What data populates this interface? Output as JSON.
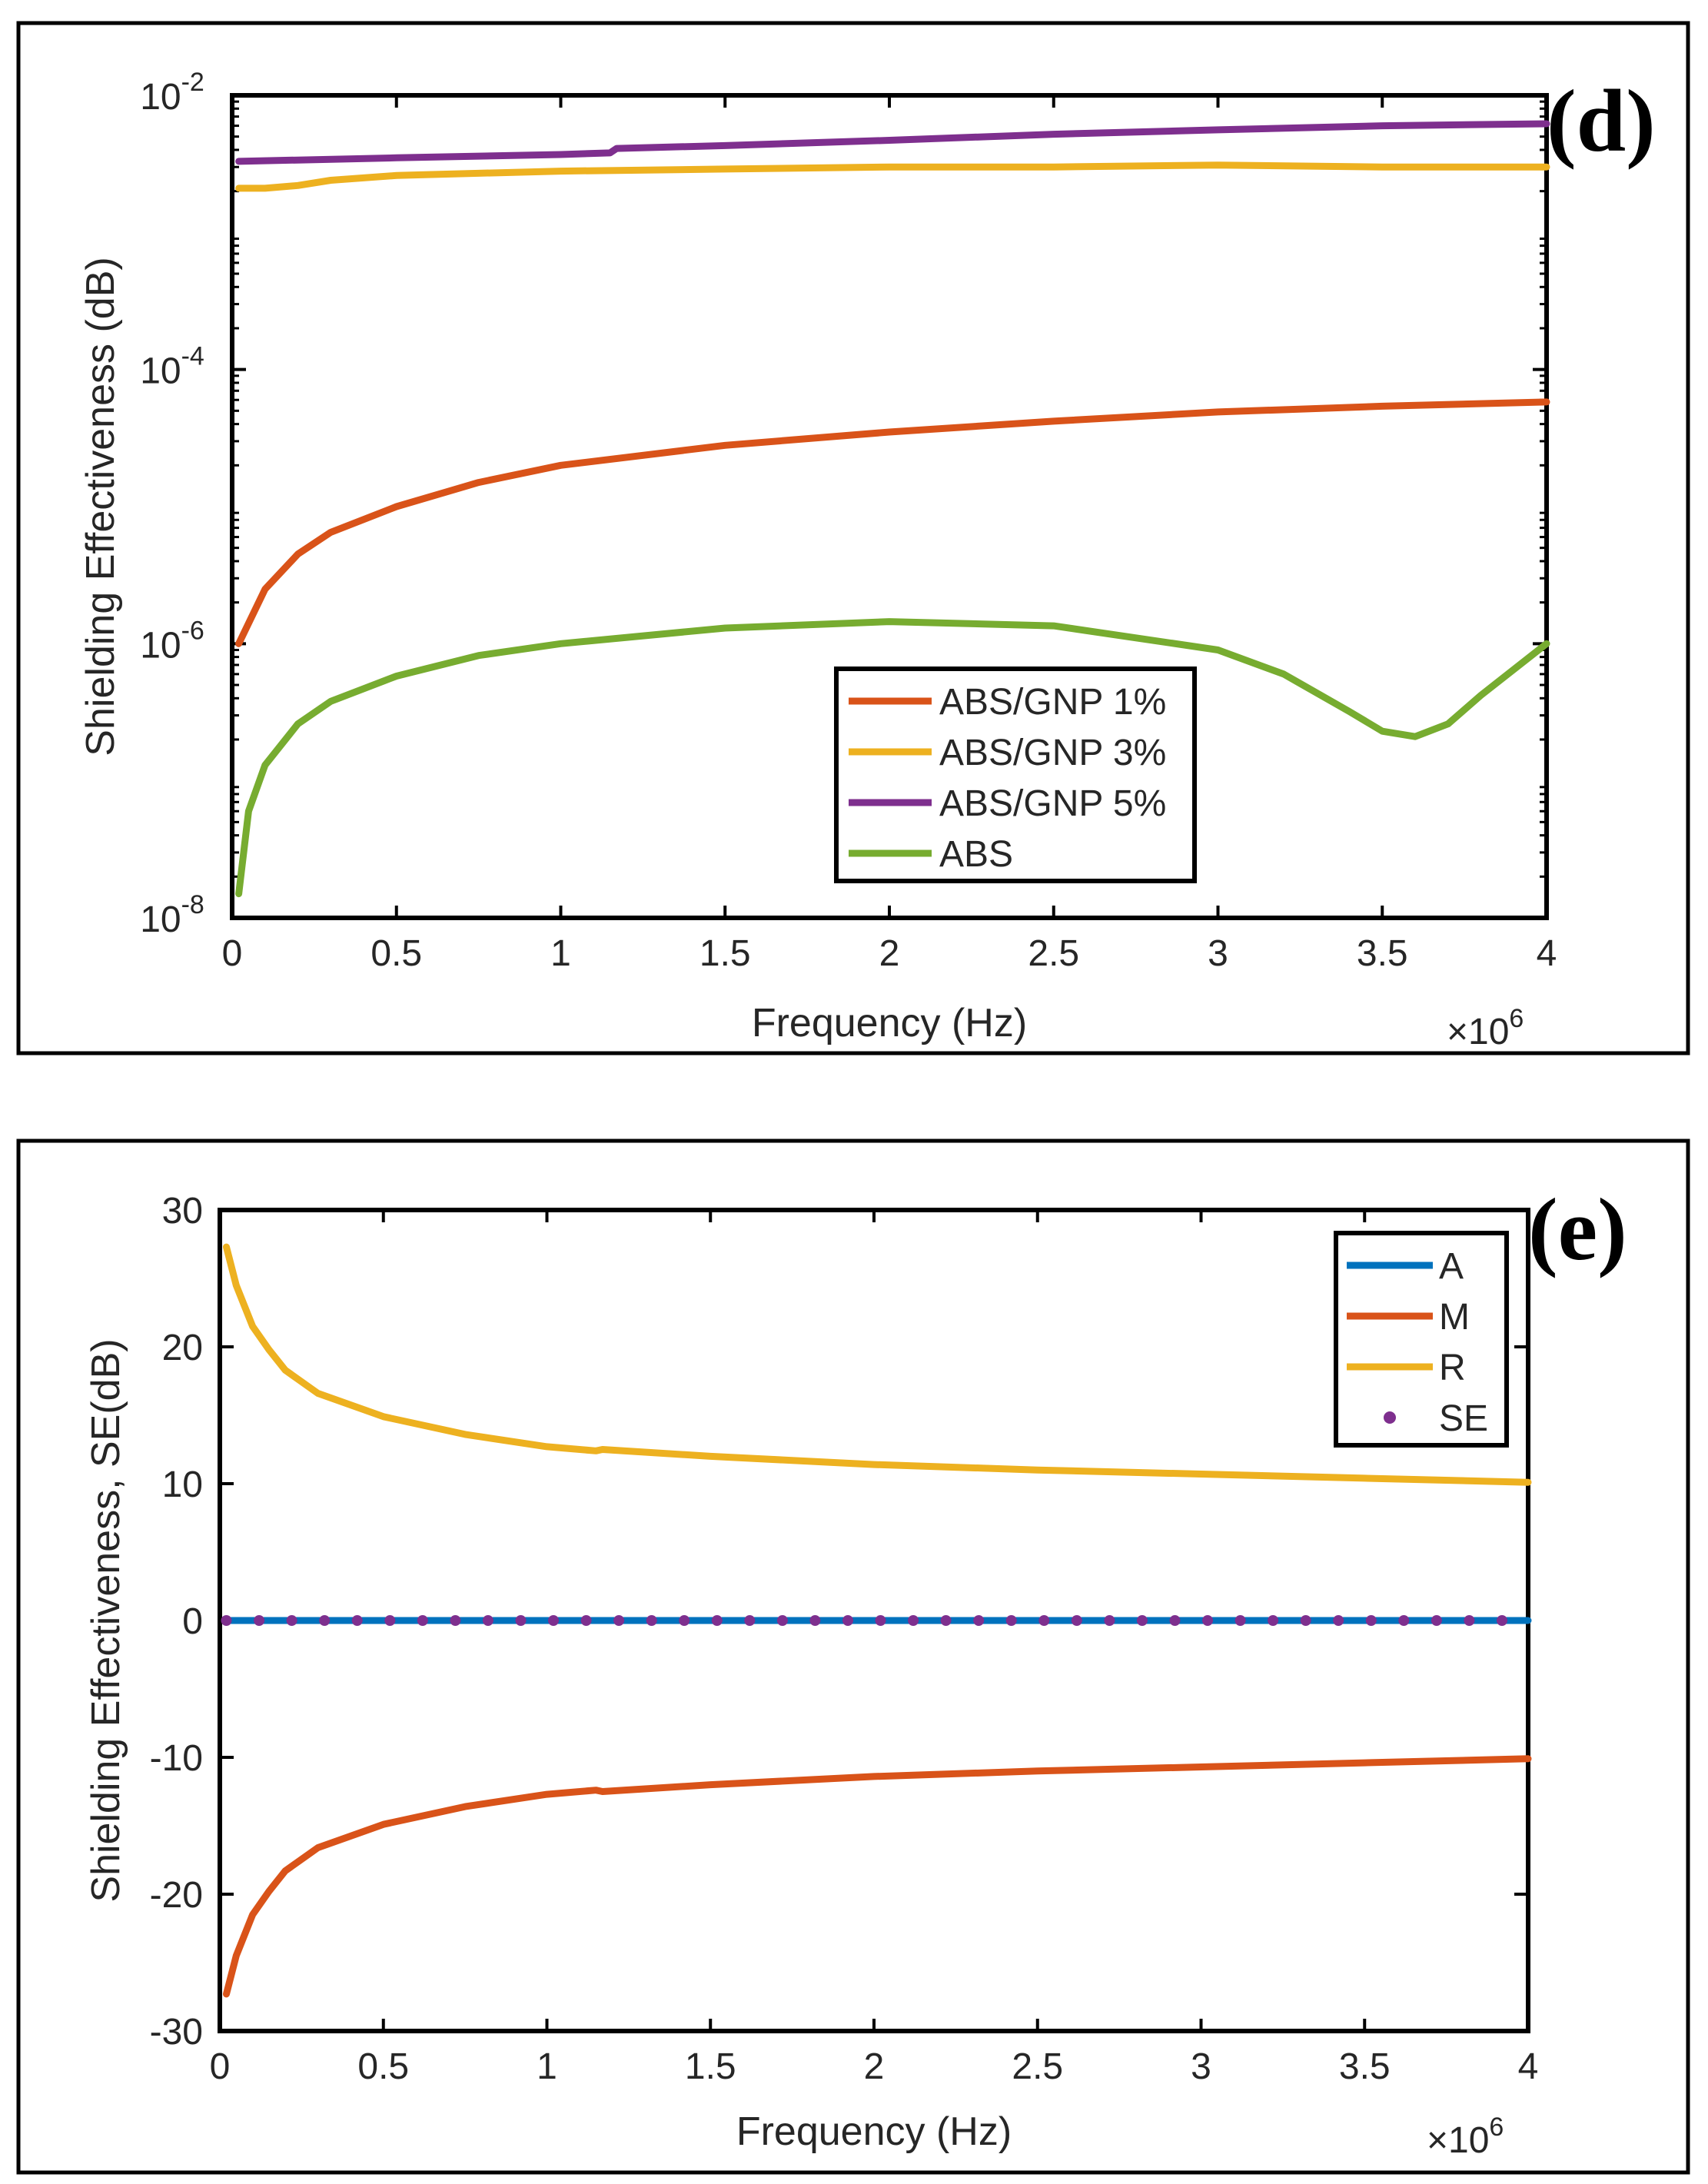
{
  "chart_data": [
    {
      "panel": "(d)",
      "type": "line",
      "title": "",
      "xlabel": "Frequency (Hz)",
      "ylabel": "Shielding Effectiveness (dB)",
      "x_multiplier_base": "×10",
      "x_multiplier_exp": "6",
      "xlim": [
        0,
        4
      ],
      "ylim": [
        1e-08,
        0.01
      ],
      "yscale": "log",
      "xticks": [
        0,
        0.5,
        1,
        1.5,
        2,
        2.5,
        3,
        3.5,
        4
      ],
      "xtick_labels": [
        "0",
        "0.5",
        "1",
        "1.5",
        "2",
        "2.5",
        "3",
        "3.5",
        "4"
      ],
      "yticks": [
        1e-08,
        1e-06,
        0.0001,
        0.01
      ],
      "ytick_bases": [
        "10",
        "10",
        "10",
        "10"
      ],
      "ytick_exps": [
        "-8",
        "-6",
        "-4",
        "-2"
      ],
      "legend_position": "lower-right",
      "series": [
        {
          "name": "ABS/GNP 1%",
          "color": "#D95319",
          "x": [
            0.02,
            0.1,
            0.2,
            0.3,
            0.5,
            0.75,
            1.0,
            1.5,
            2.0,
            2.5,
            3.0,
            3.5,
            4.0
          ],
          "y": [
            1e-06,
            2.5e-06,
            4.5e-06,
            6.5e-06,
            1e-05,
            1.5e-05,
            2e-05,
            2.8e-05,
            3.5e-05,
            4.2e-05,
            4.9e-05,
            5.4e-05,
            5.8e-05
          ]
        },
        {
          "name": "ABS/GNP 3%",
          "color": "#EDB120",
          "x": [
            0.02,
            0.1,
            0.2,
            0.3,
            0.5,
            0.75,
            1.0,
            1.5,
            2.0,
            2.5,
            3.0,
            3.5,
            4.0
          ],
          "y": [
            0.0021,
            0.0021,
            0.0022,
            0.0024,
            0.0026,
            0.0027,
            0.0028,
            0.0029,
            0.003,
            0.003,
            0.0031,
            0.003,
            0.003
          ]
        },
        {
          "name": "ABS/GNP 5%",
          "color": "#7E2F8E",
          "x": [
            0.02,
            0.5,
            1.0,
            1.15,
            1.17,
            1.5,
            2.0,
            2.5,
            3.0,
            3.5,
            4.0
          ],
          "y": [
            0.0033,
            0.0035,
            0.0037,
            0.0038,
            0.0041,
            0.0043,
            0.0047,
            0.0052,
            0.0056,
            0.006,
            0.0062
          ]
        },
        {
          "name": "ABS",
          "color": "#77AC30",
          "x": [
            0.02,
            0.05,
            0.1,
            0.2,
            0.3,
            0.5,
            0.75,
            1.0,
            1.5,
            2.0,
            2.5,
            3.0,
            3.2,
            3.4,
            3.5,
            3.6,
            3.7,
            3.8,
            4.0
          ],
          "y": [
            1.5e-08,
            6e-08,
            1.3e-07,
            2.6e-07,
            3.8e-07,
            5.8e-07,
            8.2e-07,
            1e-06,
            1.3e-06,
            1.45e-06,
            1.35e-06,
            9e-07,
            6e-07,
            3.2e-07,
            2.3e-07,
            2.1e-07,
            2.6e-07,
            4.2e-07,
            1e-06
          ]
        }
      ]
    },
    {
      "panel": "(e)",
      "type": "line",
      "title": "",
      "xlabel": "Frequency (Hz)",
      "ylabel": "Shielding Effectiveness, SE(dB)",
      "x_multiplier_base": "×10",
      "x_multiplier_exp": "6",
      "xlim": [
        0,
        4
      ],
      "ylim": [
        -30,
        30
      ],
      "yscale": "linear",
      "xticks": [
        0,
        0.5,
        1,
        1.5,
        2,
        2.5,
        3,
        3.5,
        4
      ],
      "xtick_labels": [
        "0",
        "0.5",
        "1",
        "1.5",
        "2",
        "2.5",
        "3",
        "3.5",
        "4"
      ],
      "yticks": [
        -30,
        -20,
        -10,
        0,
        10,
        20,
        30
      ],
      "ytick_labels": [
        "-30",
        "-20",
        "-10",
        "0",
        "10",
        "20",
        "30"
      ],
      "legend_position": "top-right",
      "series": [
        {
          "name": "A",
          "color": "#0072BD",
          "style": "line",
          "x": [
            0.02,
            4.0
          ],
          "y": [
            0,
            0
          ]
        },
        {
          "name": "M",
          "color": "#D95319",
          "style": "line",
          "x": [
            0.02,
            0.05,
            0.1,
            0.15,
            0.2,
            0.3,
            0.5,
            0.75,
            1.0,
            1.15,
            1.17,
            1.5,
            2.0,
            2.5,
            3.0,
            3.5,
            4.0
          ],
          "y": [
            -27.3,
            -24.5,
            -21.5,
            -19.8,
            -18.3,
            -16.6,
            -14.9,
            -13.6,
            -12.7,
            -12.4,
            -12.5,
            -12.0,
            -11.4,
            -11.0,
            -10.7,
            -10.4,
            -10.1
          ]
        },
        {
          "name": "R",
          "color": "#EDB120",
          "style": "line",
          "x": [
            0.02,
            0.05,
            0.1,
            0.15,
            0.2,
            0.3,
            0.5,
            0.75,
            1.0,
            1.15,
            1.17,
            1.5,
            2.0,
            2.5,
            3.0,
            3.5,
            4.0
          ],
          "y": [
            27.3,
            24.5,
            21.5,
            19.8,
            18.3,
            16.6,
            14.9,
            13.6,
            12.7,
            12.4,
            12.5,
            12.0,
            11.4,
            11.0,
            10.7,
            10.4,
            10.1
          ]
        },
        {
          "name": "SE",
          "color": "#7E2F8E",
          "style": "markers",
          "x": [
            0.02,
            0.12,
            0.22,
            0.32,
            0.42,
            0.52,
            0.62,
            0.72,
            0.82,
            0.92,
            1.02,
            1.12,
            1.22,
            1.32,
            1.42,
            1.52,
            1.62,
            1.72,
            1.82,
            1.92,
            2.02,
            2.12,
            2.22,
            2.32,
            2.42,
            2.52,
            2.62,
            2.72,
            2.82,
            2.92,
            3.02,
            3.12,
            3.22,
            3.32,
            3.42,
            3.52,
            3.62,
            3.72,
            3.82,
            3.92
          ],
          "y": [
            0,
            0,
            0,
            0,
            0,
            0,
            0,
            0,
            0,
            0,
            0,
            0,
            0,
            0,
            0,
            0,
            0,
            0,
            0,
            0,
            0,
            0,
            0,
            0,
            0,
            0,
            0,
            0,
            0,
            0,
            0,
            0,
            0,
            0,
            0,
            0,
            0,
            0,
            0,
            0
          ]
        }
      ]
    }
  ]
}
